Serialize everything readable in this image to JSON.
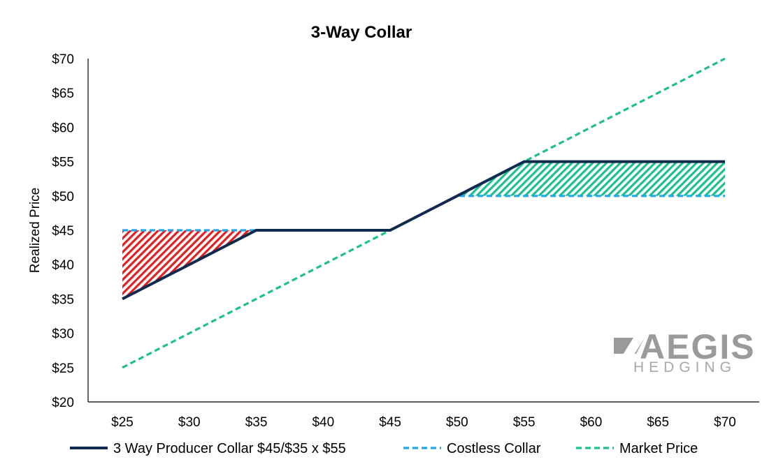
{
  "chart_data": {
    "type": "line",
    "title": "3-Way Collar",
    "xlabel": "",
    "ylabel": "Realized Price",
    "x": [
      25,
      30,
      35,
      40,
      45,
      50,
      55,
      60,
      65,
      70
    ],
    "x_tick_labels": [
      "$25",
      "$30",
      "$35",
      "$40",
      "$45",
      "$50",
      "$55",
      "$60",
      "$65",
      "$70"
    ],
    "y_tick_labels": [
      "$20",
      "$25",
      "$30",
      "$35",
      "$40",
      "$45",
      "$50",
      "$55",
      "$60",
      "$65",
      "$70"
    ],
    "xlim": [
      25,
      70
    ],
    "ylim": [
      20,
      70
    ],
    "grid": false,
    "legend_position": "bottom",
    "series": [
      {
        "name": "3 Way Producer Collar $45/$35 x $55",
        "values": [
          35,
          40,
          45,
          45,
          45,
          50,
          55,
          55,
          55,
          55
        ],
        "color": "#0f2a4f",
        "style": "solid"
      },
      {
        "name": "Costless Collar",
        "values": [
          45,
          45,
          45,
          45,
          45,
          50,
          50,
          50,
          50,
          50
        ],
        "color": "#22a7e8",
        "style": "dashed"
      },
      {
        "name": "Market Price",
        "values": [
          25,
          30,
          35,
          40,
          45,
          50,
          55,
          60,
          65,
          70
        ],
        "color": "#1ebf8e",
        "style": "dashed"
      }
    ],
    "shaded_regions": [
      {
        "from_x": 25,
        "to_x": 35,
        "color": "#e02020",
        "pattern": "hatch"
      },
      {
        "from_x": 45,
        "to_x": 70,
        "color": "#1ebf8e",
        "pattern": "hatch"
      }
    ]
  },
  "logo": {
    "name": "aegis-hedging-logo",
    "main_text": "AEGIS",
    "sub_text": "HEDGING",
    "color": "#9a9a9a"
  }
}
